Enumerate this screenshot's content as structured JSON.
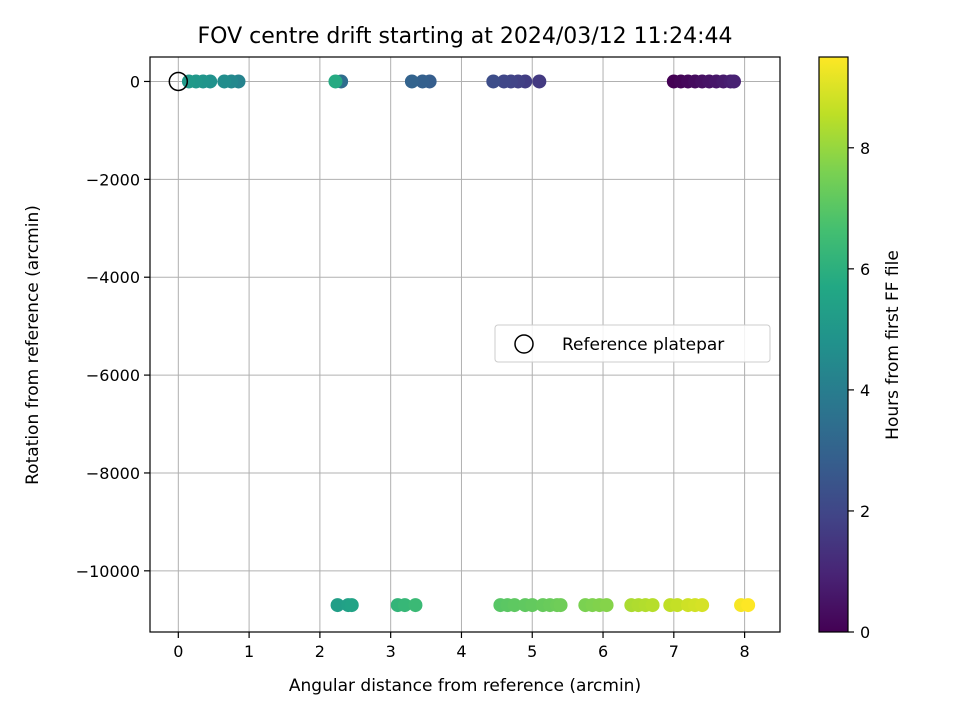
{
  "chart_data": {
    "type": "scatter",
    "title": "FOV centre drift starting at 2024/03/12 11:24:44",
    "xlabel": "Angular distance from reference (arcmin)",
    "ylabel": "Rotation from reference (arcmin)",
    "xlim": [
      -0.4,
      8.5
    ],
    "ylim": [
      -11250,
      500
    ],
    "xticks": [
      0,
      1,
      2,
      3,
      4,
      5,
      6,
      7,
      8
    ],
    "yticks": [
      0,
      -2000,
      -4000,
      -6000,
      -8000,
      -10000
    ],
    "xtick_labels": [
      "0",
      "1",
      "2",
      "3",
      "4",
      "5",
      "6",
      "7",
      "8"
    ],
    "ytick_labels": [
      "0",
      "−2000",
      "−4000",
      "−6000",
      "−8000",
      "−10000"
    ],
    "grid": true,
    "legend": {
      "placement": "center-right",
      "entries": [
        {
          "label": "Reference platepar",
          "marker": "open-circle"
        }
      ]
    },
    "reference_point": {
      "x": 0,
      "y": 0
    },
    "colorbar": {
      "label": "Hours from first FF file",
      "colormap": "viridis",
      "range": [
        0,
        9.5
      ],
      "ticks": [
        0,
        2,
        4,
        6,
        8
      ],
      "tick_labels": [
        "0",
        "2",
        "4",
        "6",
        "8"
      ]
    },
    "points": [
      {
        "x": 7.0,
        "y": 0,
        "c": 0.0
      },
      {
        "x": 7.1,
        "y": 0,
        "c": 0.1
      },
      {
        "x": 7.2,
        "y": 0,
        "c": 0.2
      },
      {
        "x": 7.3,
        "y": 0,
        "c": 0.3
      },
      {
        "x": 7.4,
        "y": 0,
        "c": 0.4
      },
      {
        "x": 7.5,
        "y": 0,
        "c": 0.5
      },
      {
        "x": 7.6,
        "y": 0,
        "c": 0.6
      },
      {
        "x": 7.7,
        "y": 0,
        "c": 0.7
      },
      {
        "x": 7.8,
        "y": 0,
        "c": 0.8
      },
      {
        "x": 7.85,
        "y": 0,
        "c": 0.9
      },
      {
        "x": 5.1,
        "y": 0,
        "c": 1.6
      },
      {
        "x": 4.9,
        "y": 0,
        "c": 1.7
      },
      {
        "x": 4.8,
        "y": 0,
        "c": 1.8
      },
      {
        "x": 4.7,
        "y": 0,
        "c": 1.9
      },
      {
        "x": 4.6,
        "y": 0,
        "c": 2.0
      },
      {
        "x": 4.45,
        "y": 0,
        "c": 2.2
      },
      {
        "x": 3.55,
        "y": 0,
        "c": 2.8
      },
      {
        "x": 3.45,
        "y": 0,
        "c": 2.9
      },
      {
        "x": 3.3,
        "y": 0,
        "c": 3.0
      },
      {
        "x": 2.3,
        "y": 0,
        "c": 3.4
      },
      {
        "x": 0.85,
        "y": 0,
        "c": 4.2
      },
      {
        "x": 0.75,
        "y": 0,
        "c": 4.4
      },
      {
        "x": 0.65,
        "y": 0,
        "c": 4.6
      },
      {
        "x": 0.45,
        "y": 0,
        "c": 4.8
      },
      {
        "x": 0.35,
        "y": 0,
        "c": 4.9
      },
      {
        "x": 0.25,
        "y": 0,
        "c": 5.0
      },
      {
        "x": 0.15,
        "y": 0,
        "c": 5.1
      },
      {
        "x": 2.22,
        "y": 0,
        "c": 5.8
      },
      {
        "x": 2.25,
        "y": -10700,
        "c": 5.3
      },
      {
        "x": 2.4,
        "y": -10700,
        "c": 5.4
      },
      {
        "x": 2.45,
        "y": -10700,
        "c": 5.5
      },
      {
        "x": 3.1,
        "y": -10700,
        "c": 6.2
      },
      {
        "x": 3.2,
        "y": -10700,
        "c": 6.3
      },
      {
        "x": 3.35,
        "y": -10700,
        "c": 6.4
      },
      {
        "x": 4.55,
        "y": -10700,
        "c": 7.0
      },
      {
        "x": 4.65,
        "y": -10700,
        "c": 7.05
      },
      {
        "x": 4.75,
        "y": -10700,
        "c": 7.1
      },
      {
        "x": 4.9,
        "y": -10700,
        "c": 7.15
      },
      {
        "x": 5.0,
        "y": -10700,
        "c": 7.2
      },
      {
        "x": 5.15,
        "y": -10700,
        "c": 7.25
      },
      {
        "x": 5.25,
        "y": -10700,
        "c": 7.3
      },
      {
        "x": 5.35,
        "y": -10700,
        "c": 7.35
      },
      {
        "x": 5.4,
        "y": -10700,
        "c": 7.4
      },
      {
        "x": 5.75,
        "y": -10700,
        "c": 7.6
      },
      {
        "x": 5.85,
        "y": -10700,
        "c": 7.65
      },
      {
        "x": 5.95,
        "y": -10700,
        "c": 7.7
      },
      {
        "x": 6.05,
        "y": -10700,
        "c": 7.75
      },
      {
        "x": 6.4,
        "y": -10700,
        "c": 8.3
      },
      {
        "x": 6.5,
        "y": -10700,
        "c": 8.35
      },
      {
        "x": 6.6,
        "y": -10700,
        "c": 8.4
      },
      {
        "x": 6.7,
        "y": -10700,
        "c": 8.45
      },
      {
        "x": 6.95,
        "y": -10700,
        "c": 8.6
      },
      {
        "x": 7.05,
        "y": -10700,
        "c": 8.65
      },
      {
        "x": 7.2,
        "y": -10700,
        "c": 8.8
      },
      {
        "x": 7.3,
        "y": -10700,
        "c": 8.85
      },
      {
        "x": 7.4,
        "y": -10700,
        "c": 8.9
      },
      {
        "x": 7.95,
        "y": -10700,
        "c": 9.4
      },
      {
        "x": 8.05,
        "y": -10700,
        "c": 9.5
      }
    ]
  }
}
